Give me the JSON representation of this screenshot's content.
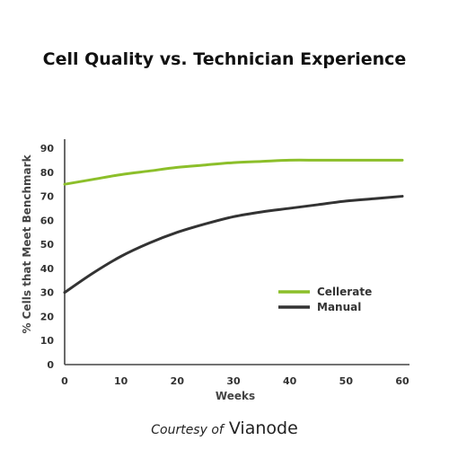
{
  "chart_data": {
    "type": "line",
    "title": "Cell Quality vs. Technician Experience",
    "xlabel": "Weeks",
    "ylabel": "% Cells that Meet Benchmark",
    "xlim": [
      0,
      60
    ],
    "ylim": [
      0,
      90
    ],
    "x_ticks": [
      0,
      10,
      20,
      30,
      40,
      50,
      60
    ],
    "y_ticks": [
      0,
      10,
      20,
      30,
      40,
      50,
      60,
      70,
      80,
      90
    ],
    "grid": false,
    "legend_position": "right-center",
    "x": [
      0,
      5,
      10,
      15,
      20,
      25,
      30,
      35,
      40,
      45,
      50,
      55,
      60
    ],
    "series": [
      {
        "name": "Cellerate",
        "color": "#8cbf2a",
        "values": [
          75,
          77,
          79,
          80.5,
          82,
          83,
          84,
          84.5,
          85,
          85,
          85,
          85,
          85
        ]
      },
      {
        "name": "Manual",
        "color": "#333333",
        "values": [
          30,
          38,
          45,
          50.5,
          55,
          58.5,
          61.5,
          63.5,
          65,
          66.5,
          68,
          69,
          70
        ]
      }
    ]
  },
  "credit": {
    "prefix": "Courtesy of",
    "brand": "Vianode"
  }
}
